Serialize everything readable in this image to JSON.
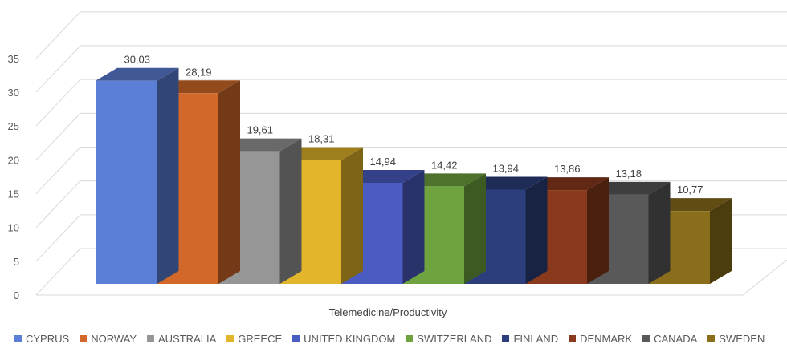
{
  "chart_data": {
    "type": "bar",
    "style": "3d-clustered-column",
    "xlabel": "Telemedicine/Productivity",
    "ylabel": "",
    "ylim": [
      0,
      35
    ],
    "yticks": [
      0,
      5,
      10,
      15,
      20,
      25,
      30,
      35
    ],
    "grid": true,
    "legend_position": "bottom",
    "categories": [
      "Telemedicine/Productivity"
    ],
    "series": [
      {
        "name": "CYPRUS",
        "value": 30.03,
        "label": "30,03",
        "color": "#5B7FD6"
      },
      {
        "name": "NORWAY",
        "value": 28.19,
        "label": "28,19",
        "color": "#D2692A"
      },
      {
        "name": "AUSTRALIA",
        "value": 19.61,
        "label": "19,61",
        "color": "#969696"
      },
      {
        "name": "GREECE",
        "value": 18.31,
        "label": "18,31",
        "color": "#E3B52A"
      },
      {
        "name": "UNITED KINGDOM",
        "value": 14.94,
        "label": "14,94",
        "color": "#4A5BC2"
      },
      {
        "name": "SWITZERLAND",
        "value": 14.42,
        "label": "14,42",
        "color": "#6FA33F"
      },
      {
        "name": "FINLAND",
        "value": 13.94,
        "label": "13,94",
        "color": "#2C3F7C"
      },
      {
        "name": "DENMARK",
        "value": 13.86,
        "label": "13,86",
        "color": "#8A3A1C"
      },
      {
        "name": "CANADA",
        "value": 13.18,
        "label": "13,18",
        "color": "#595959"
      },
      {
        "name": "SWEDEN",
        "value": 10.77,
        "label": "10,77",
        "color": "#8A6E1C"
      }
    ]
  }
}
